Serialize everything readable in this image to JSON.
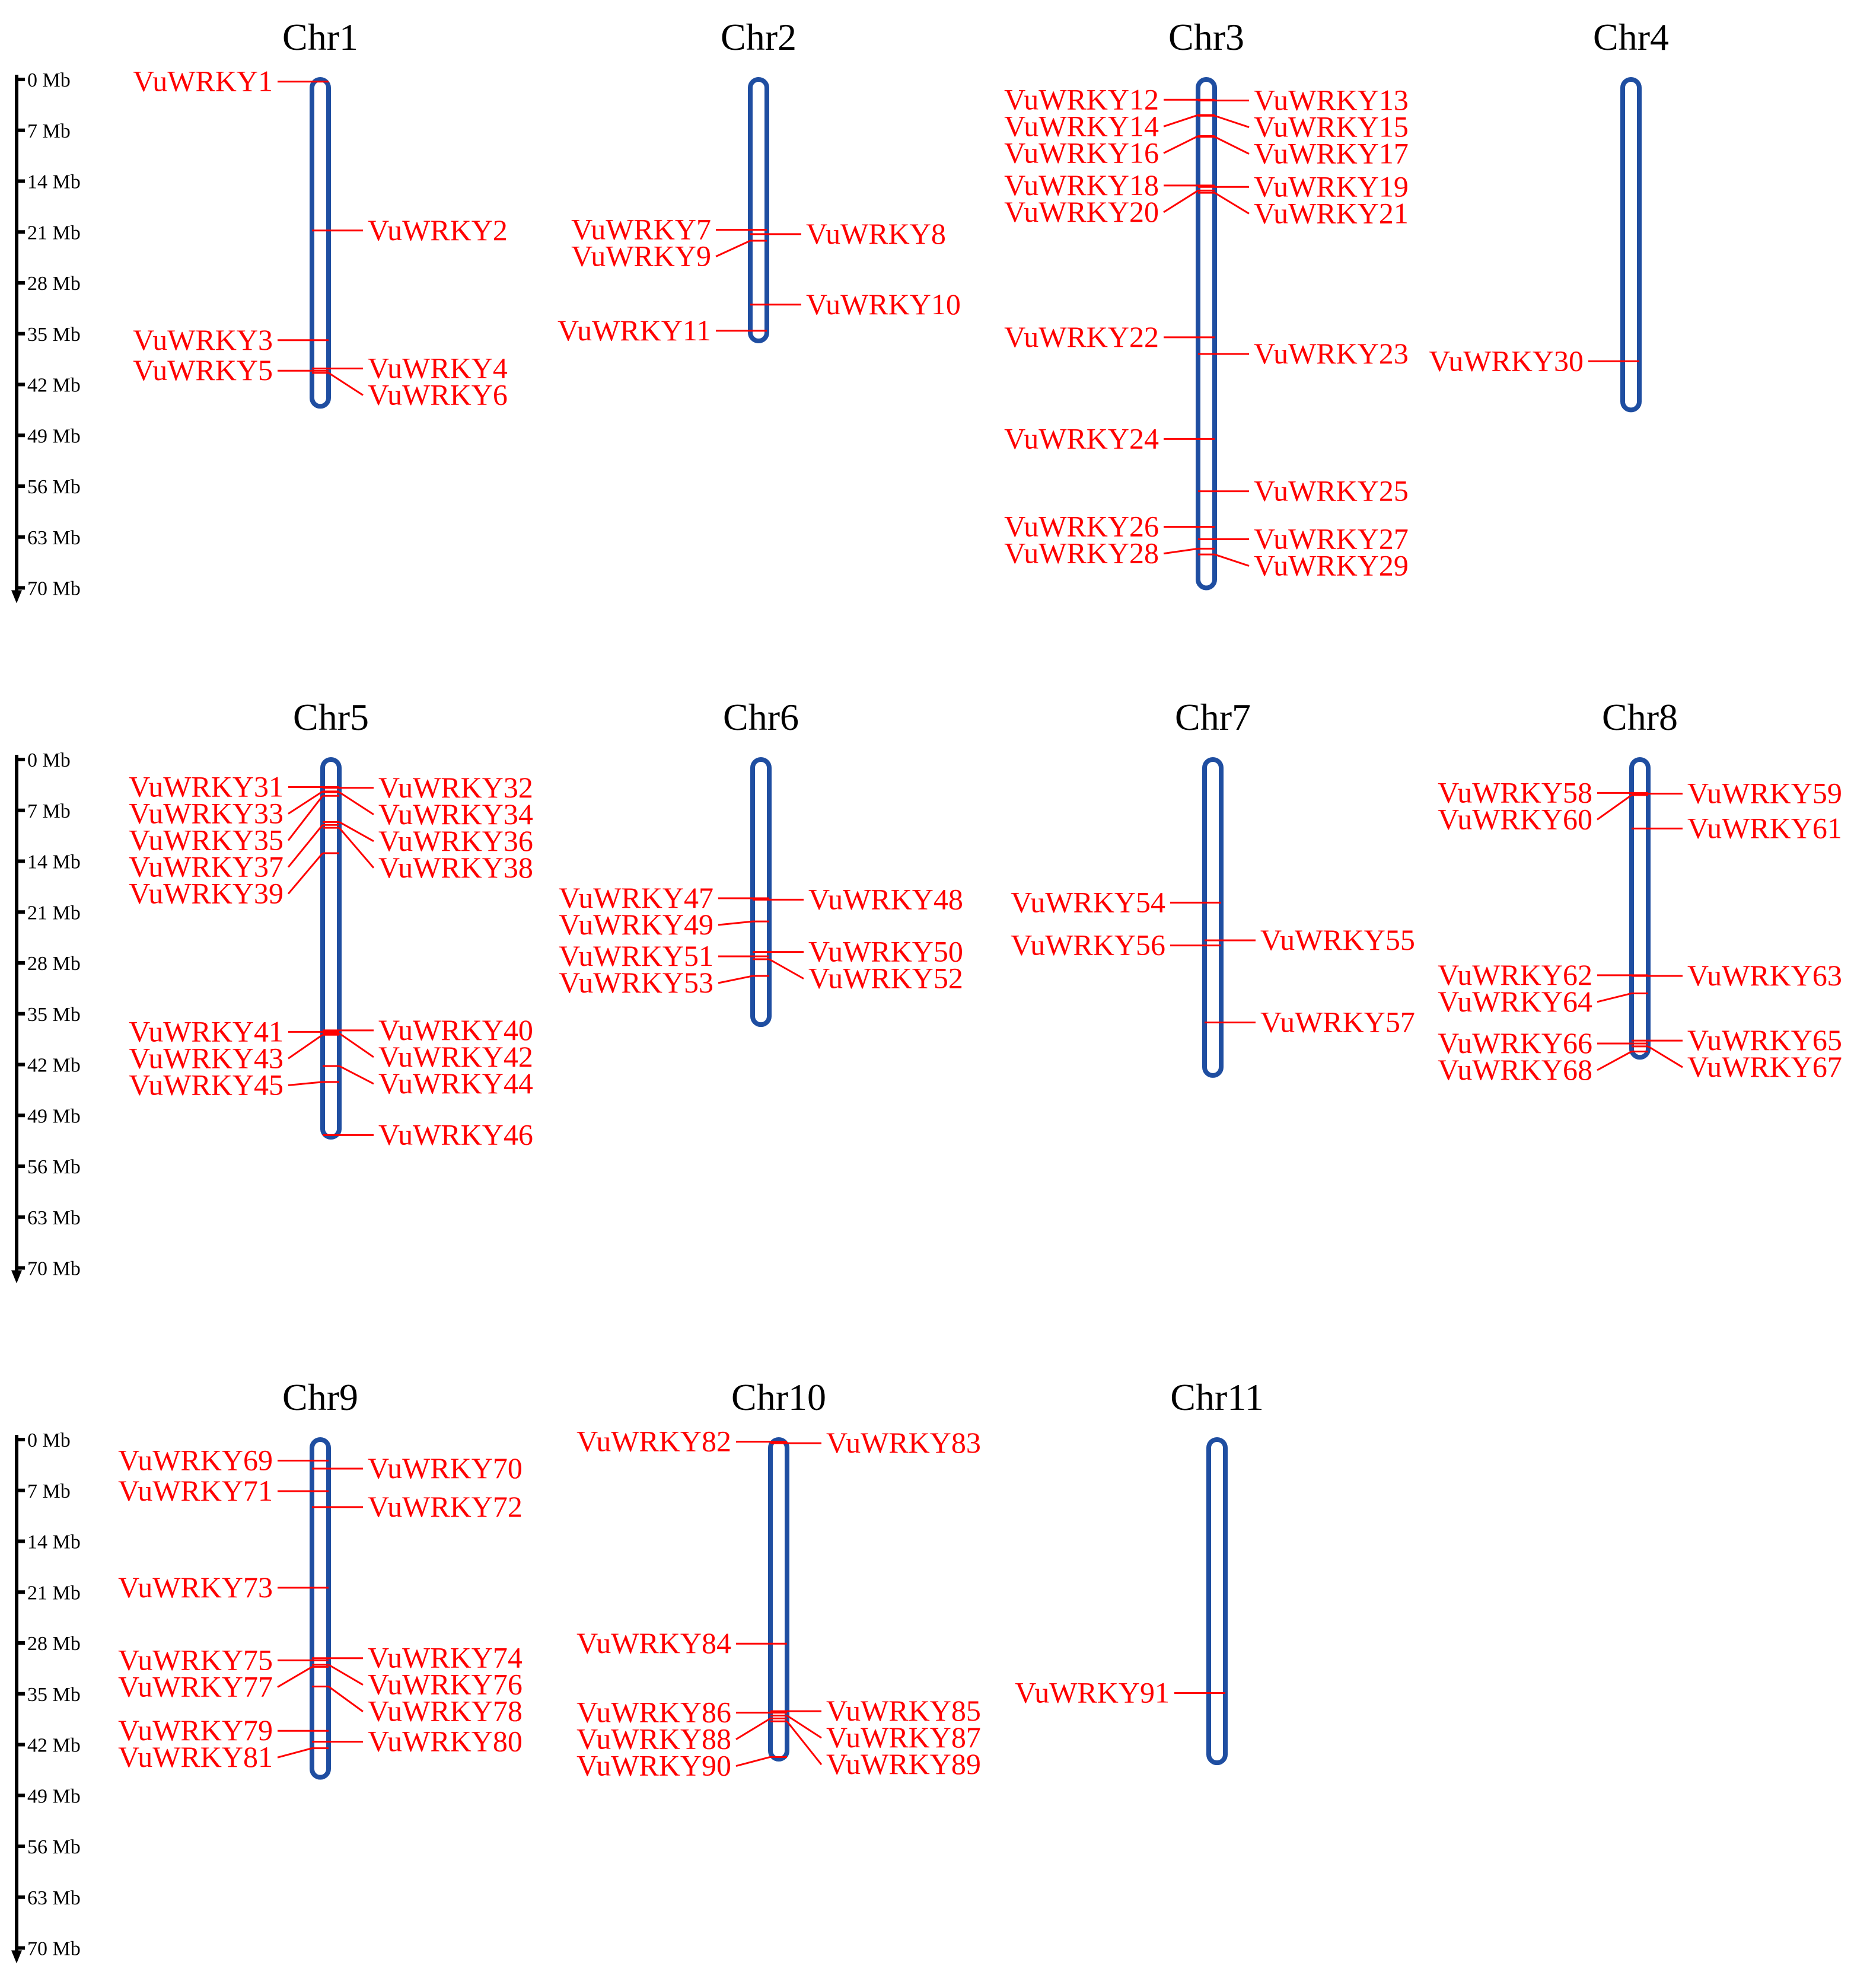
{
  "colors": {
    "chromosome": "#1f4ea1",
    "gene": "#ff0000",
    "text": "#000000"
  },
  "scale": {
    "unit": "Mb",
    "max": 70,
    "ticks": [
      {
        "value": 0,
        "label": "0 Mb"
      },
      {
        "value": 7,
        "label": "7 Mb"
      },
      {
        "value": 14,
        "label": "14 Mb"
      },
      {
        "value": 21,
        "label": "21 Mb"
      },
      {
        "value": 28,
        "label": "28 Mb"
      },
      {
        "value": 35,
        "label": "35 Mb"
      },
      {
        "value": 42,
        "label": "42 Mb"
      },
      {
        "value": 49,
        "label": "49 Mb"
      },
      {
        "value": 56,
        "label": "56 Mb"
      },
      {
        "value": 63,
        "label": "63 Mb"
      },
      {
        "value": 70,
        "label": "70 Mb"
      }
    ]
  },
  "chromosomes": [
    {
      "name": "Chr1",
      "length": 45,
      "genes": [
        {
          "id": "VuWRKY1",
          "pos": 0.3,
          "side": "L"
        },
        {
          "id": "VuWRKY2",
          "pos": 20.8,
          "side": "R"
        },
        {
          "id": "VuWRKY3",
          "pos": 35.9,
          "side": "L"
        },
        {
          "id": "VuWRKY4",
          "pos": 39.8,
          "side": "R"
        },
        {
          "id": "VuWRKY5",
          "pos": 40.1,
          "side": "L"
        },
        {
          "id": "VuWRKY6",
          "pos": 40.4,
          "side": "R"
        }
      ]
    },
    {
      "name": "Chr2",
      "length": 36,
      "genes": [
        {
          "id": "VuWRKY7",
          "pos": 20.7,
          "side": "L"
        },
        {
          "id": "VuWRKY8",
          "pos": 21.3,
          "side": "R"
        },
        {
          "id": "VuWRKY9",
          "pos": 22.2,
          "side": "L"
        },
        {
          "id": "VuWRKY10",
          "pos": 31.0,
          "side": "R"
        },
        {
          "id": "VuWRKY11",
          "pos": 34.6,
          "side": "L"
        }
      ]
    },
    {
      "name": "Chr3",
      "length": 70,
      "genes": [
        {
          "id": "VuWRKY12",
          "pos": 2.8,
          "side": "L"
        },
        {
          "id": "VuWRKY13",
          "pos": 2.9,
          "side": "R"
        },
        {
          "id": "VuWRKY14",
          "pos": 4.9,
          "side": "L"
        },
        {
          "id": "VuWRKY15",
          "pos": 5.0,
          "side": "R"
        },
        {
          "id": "VuWRKY16",
          "pos": 7.8,
          "side": "L"
        },
        {
          "id": "VuWRKY17",
          "pos": 7.9,
          "side": "R"
        },
        {
          "id": "VuWRKY18",
          "pos": 14.6,
          "side": "L"
        },
        {
          "id": "VuWRKY19",
          "pos": 14.8,
          "side": "R"
        },
        {
          "id": "VuWRKY20",
          "pos": 15.3,
          "side": "L"
        },
        {
          "id": "VuWRKY21",
          "pos": 15.6,
          "side": "R"
        },
        {
          "id": "VuWRKY22",
          "pos": 35.5,
          "side": "L"
        },
        {
          "id": "VuWRKY23",
          "pos": 37.8,
          "side": "R"
        },
        {
          "id": "VuWRKY24",
          "pos": 49.5,
          "side": "L"
        },
        {
          "id": "VuWRKY25",
          "pos": 56.7,
          "side": "R"
        },
        {
          "id": "VuWRKY26",
          "pos": 61.6,
          "side": "L"
        },
        {
          "id": "VuWRKY27",
          "pos": 63.3,
          "side": "R"
        },
        {
          "id": "VuWRKY28",
          "pos": 64.6,
          "side": "L"
        },
        {
          "id": "VuWRKY29",
          "pos": 65.4,
          "side": "R"
        }
      ]
    },
    {
      "name": "Chr4",
      "length": 45.5,
      "genes": [
        {
          "id": "VuWRKY30",
          "pos": 38.8,
          "side": "L"
        }
      ]
    },
    {
      "name": "Chr5",
      "length": 52,
      "genes": [
        {
          "id": "VuWRKY31",
          "pos": 3.8,
          "side": "L"
        },
        {
          "id": "VuWRKY32",
          "pos": 3.9,
          "side": "R"
        },
        {
          "id": "VuWRKY33",
          "pos": 4.4,
          "side": "L"
        },
        {
          "id": "VuWRKY34",
          "pos": 4.5,
          "side": "R"
        },
        {
          "id": "VuWRKY35",
          "pos": 5.0,
          "side": "L"
        },
        {
          "id": "VuWRKY36",
          "pos": 8.6,
          "side": "R"
        },
        {
          "id": "VuWRKY37",
          "pos": 9.0,
          "side": "L"
        },
        {
          "id": "VuWRKY38",
          "pos": 9.4,
          "side": "R"
        },
        {
          "id": "VuWRKY39",
          "pos": 12.9,
          "side": "L"
        },
        {
          "id": "VuWRKY40",
          "pos": 37.3,
          "side": "R"
        },
        {
          "id": "VuWRKY41",
          "pos": 37.5,
          "side": "L"
        },
        {
          "id": "VuWRKY42",
          "pos": 37.7,
          "side": "R"
        },
        {
          "id": "VuWRKY43",
          "pos": 37.9,
          "side": "L"
        },
        {
          "id": "VuWRKY44",
          "pos": 42.2,
          "side": "R"
        },
        {
          "id": "VuWRKY45",
          "pos": 44.4,
          "side": "L"
        },
        {
          "id": "VuWRKY46",
          "pos": 51.7,
          "side": "R"
        }
      ]
    },
    {
      "name": "Chr6",
      "length": 36.5,
      "genes": [
        {
          "id": "VuWRKY47",
          "pos": 19.1,
          "side": "L"
        },
        {
          "id": "VuWRKY48",
          "pos": 19.3,
          "side": "R"
        },
        {
          "id": "VuWRKY49",
          "pos": 22.3,
          "side": "L"
        },
        {
          "id": "VuWRKY50",
          "pos": 26.5,
          "side": "R"
        },
        {
          "id": "VuWRKY51",
          "pos": 27.1,
          "side": "L"
        },
        {
          "id": "VuWRKY52",
          "pos": 27.5,
          "side": "R"
        },
        {
          "id": "VuWRKY53",
          "pos": 29.8,
          "side": "L"
        }
      ]
    },
    {
      "name": "Chr7",
      "length": 43.5,
      "genes": [
        {
          "id": "VuWRKY54",
          "pos": 19.7,
          "side": "L"
        },
        {
          "id": "VuWRKY55",
          "pos": 24.9,
          "side": "R"
        },
        {
          "id": "VuWRKY56",
          "pos": 25.6,
          "side": "L"
        },
        {
          "id": "VuWRKY57",
          "pos": 36.2,
          "side": "R"
        }
      ]
    },
    {
      "name": "Chr8",
      "length": 41,
      "genes": [
        {
          "id": "VuWRKY58",
          "pos": 4.6,
          "side": "L"
        },
        {
          "id": "VuWRKY59",
          "pos": 4.7,
          "side": "R"
        },
        {
          "id": "VuWRKY60",
          "pos": 4.9,
          "side": "L"
        },
        {
          "id": "VuWRKY61",
          "pos": 9.5,
          "side": "R"
        },
        {
          "id": "VuWRKY62",
          "pos": 29.7,
          "side": "L"
        },
        {
          "id": "VuWRKY63",
          "pos": 29.8,
          "side": "R"
        },
        {
          "id": "VuWRKY64",
          "pos": 32.2,
          "side": "L"
        },
        {
          "id": "VuWRKY65",
          "pos": 38.7,
          "side": "R"
        },
        {
          "id": "VuWRKY66",
          "pos": 39.1,
          "side": "L"
        },
        {
          "id": "VuWRKY67",
          "pos": 39.5,
          "side": "R"
        },
        {
          "id": "VuWRKY68",
          "pos": 40.2,
          "side": "L"
        }
      ]
    },
    {
      "name": "Chr9",
      "length": 46.5,
      "genes": [
        {
          "id": "VuWRKY69",
          "pos": 2.9,
          "side": "L"
        },
        {
          "id": "VuWRKY70",
          "pos": 4.0,
          "side": "R"
        },
        {
          "id": "VuWRKY71",
          "pos": 7.1,
          "side": "L"
        },
        {
          "id": "VuWRKY72",
          "pos": 9.3,
          "side": "R"
        },
        {
          "id": "VuWRKY73",
          "pos": 20.4,
          "side": "L"
        },
        {
          "id": "VuWRKY74",
          "pos": 30.1,
          "side": "R"
        },
        {
          "id": "VuWRKY75",
          "pos": 30.4,
          "side": "L"
        },
        {
          "id": "VuWRKY76",
          "pos": 31.0,
          "side": "R"
        },
        {
          "id": "VuWRKY77",
          "pos": 31.3,
          "side": "L"
        },
        {
          "id": "VuWRKY78",
          "pos": 34.0,
          "side": "R"
        },
        {
          "id": "VuWRKY79",
          "pos": 40.1,
          "side": "L"
        },
        {
          "id": "VuWRKY80",
          "pos": 41.6,
          "side": "R"
        },
        {
          "id": "VuWRKY81",
          "pos": 42.5,
          "side": "L"
        }
      ]
    },
    {
      "name": "Chr10",
      "length": 44,
      "genes": [
        {
          "id": "VuWRKY82",
          "pos": 0.3,
          "side": "L"
        },
        {
          "id": "VuWRKY83",
          "pos": 0.5,
          "side": "R"
        },
        {
          "id": "VuWRKY84",
          "pos": 28.1,
          "side": "L"
        },
        {
          "id": "VuWRKY85",
          "pos": 37.4,
          "side": "R"
        },
        {
          "id": "VuWRKY86",
          "pos": 37.6,
          "side": "L"
        },
        {
          "id": "VuWRKY87",
          "pos": 38.0,
          "side": "R"
        },
        {
          "id": "VuWRKY88",
          "pos": 38.4,
          "side": "L"
        },
        {
          "id": "VuWRKY89",
          "pos": 38.8,
          "side": "R"
        },
        {
          "id": "VuWRKY90",
          "pos": 43.7,
          "side": "L"
        }
      ]
    },
    {
      "name": "Chr11",
      "length": 44.5,
      "genes": [
        {
          "id": "VuWRKY91",
          "pos": 34.9,
          "side": "L"
        }
      ]
    }
  ]
}
